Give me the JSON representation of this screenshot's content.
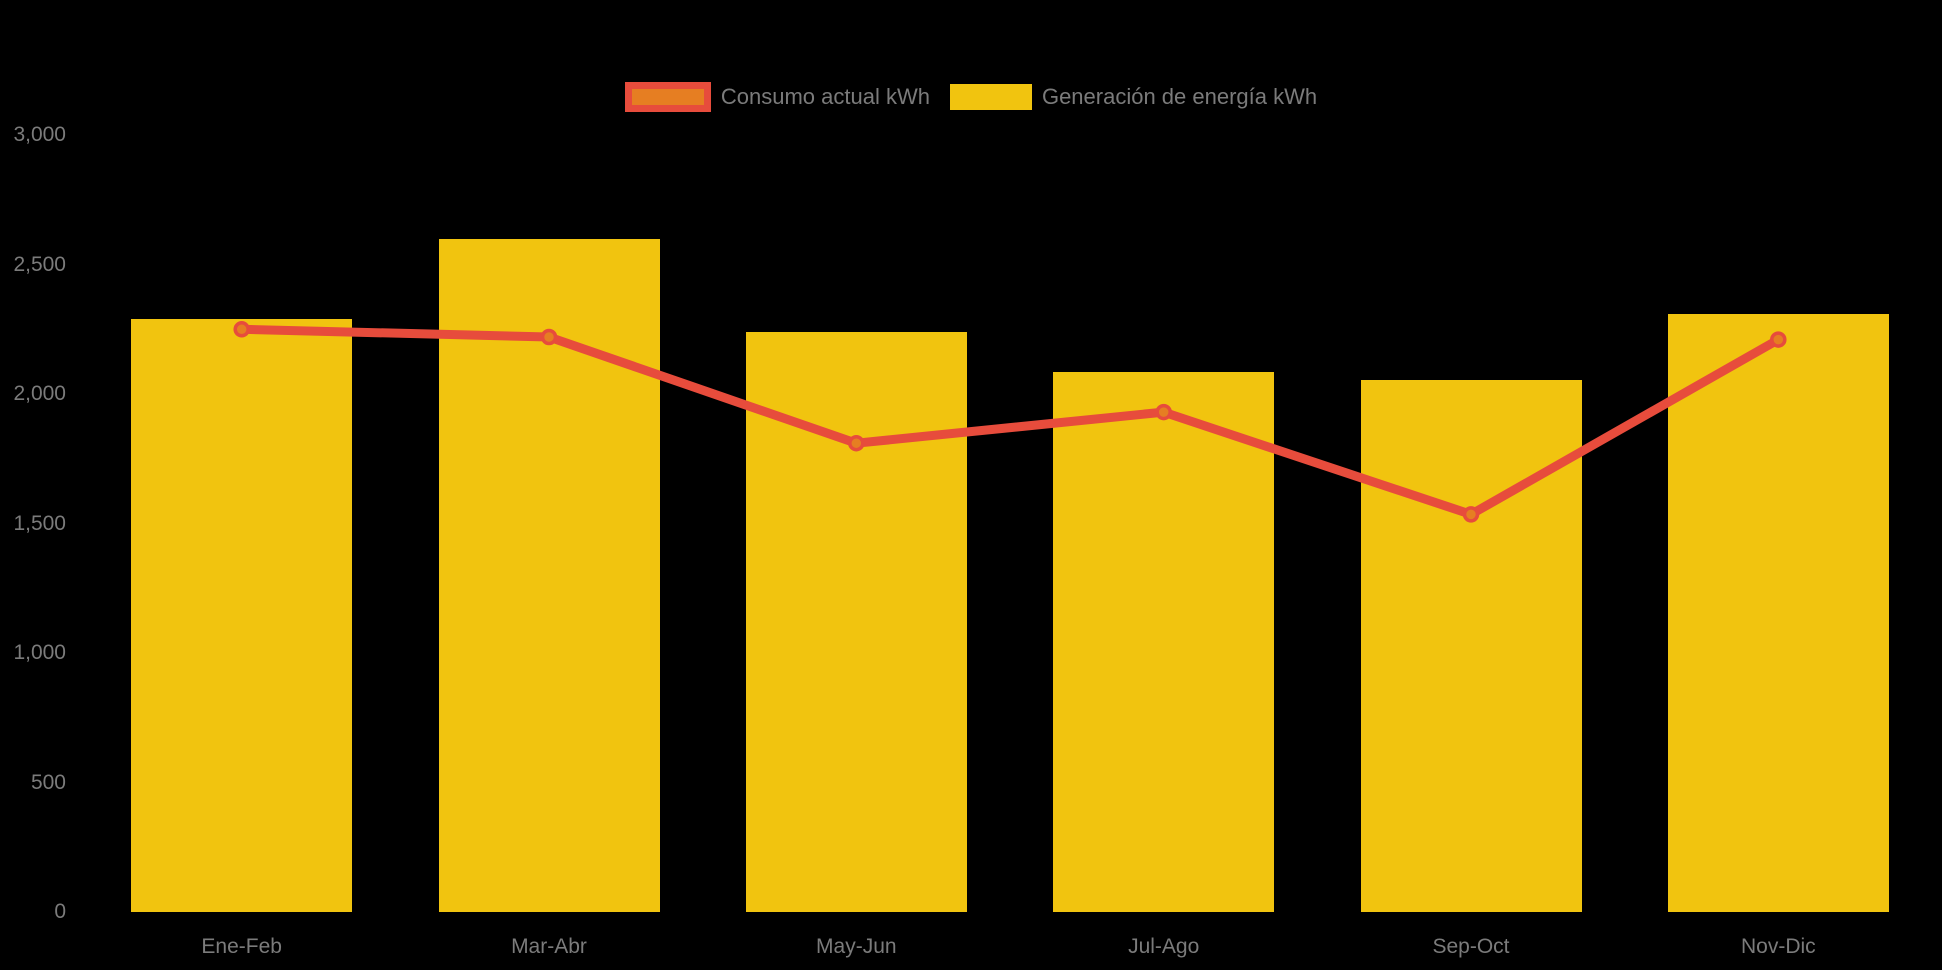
{
  "chart_data": {
    "type": "bar",
    "title": "",
    "categories": [
      "Ene-Feb",
      "Mar-Abr",
      "May-Jun",
      "Jul-Ago",
      "Sep-Oct",
      "Nov-Dic"
    ],
    "series": [
      {
        "name": "Consumo actual kWh",
        "type": "line",
        "values": [
          2250,
          2220,
          1810,
          1930,
          1535,
          2210
        ],
        "color": "#e74c3c",
        "point_fill": "#e67e22"
      },
      {
        "name": "Generación de energía kWh",
        "type": "bar",
        "values": [
          2290,
          2600,
          2240,
          2085,
          2055,
          2310
        ],
        "color": "#f1c40f"
      }
    ],
    "ylim": [
      0,
      3000
    ],
    "y_ticks": [
      {
        "value": 3000,
        "label": "3,000"
      },
      {
        "value": 2500,
        "label": "2,500"
      },
      {
        "value": 2000,
        "label": "2,000"
      },
      {
        "value": 1500,
        "label": "1,500"
      },
      {
        "value": 1000,
        "label": "1,000"
      },
      {
        "value": 500,
        "label": "500"
      },
      {
        "value": 0,
        "label": "0"
      }
    ],
    "grid": false,
    "legend_position": "top",
    "background": "#000000",
    "text_color": "#7b7b7b"
  }
}
